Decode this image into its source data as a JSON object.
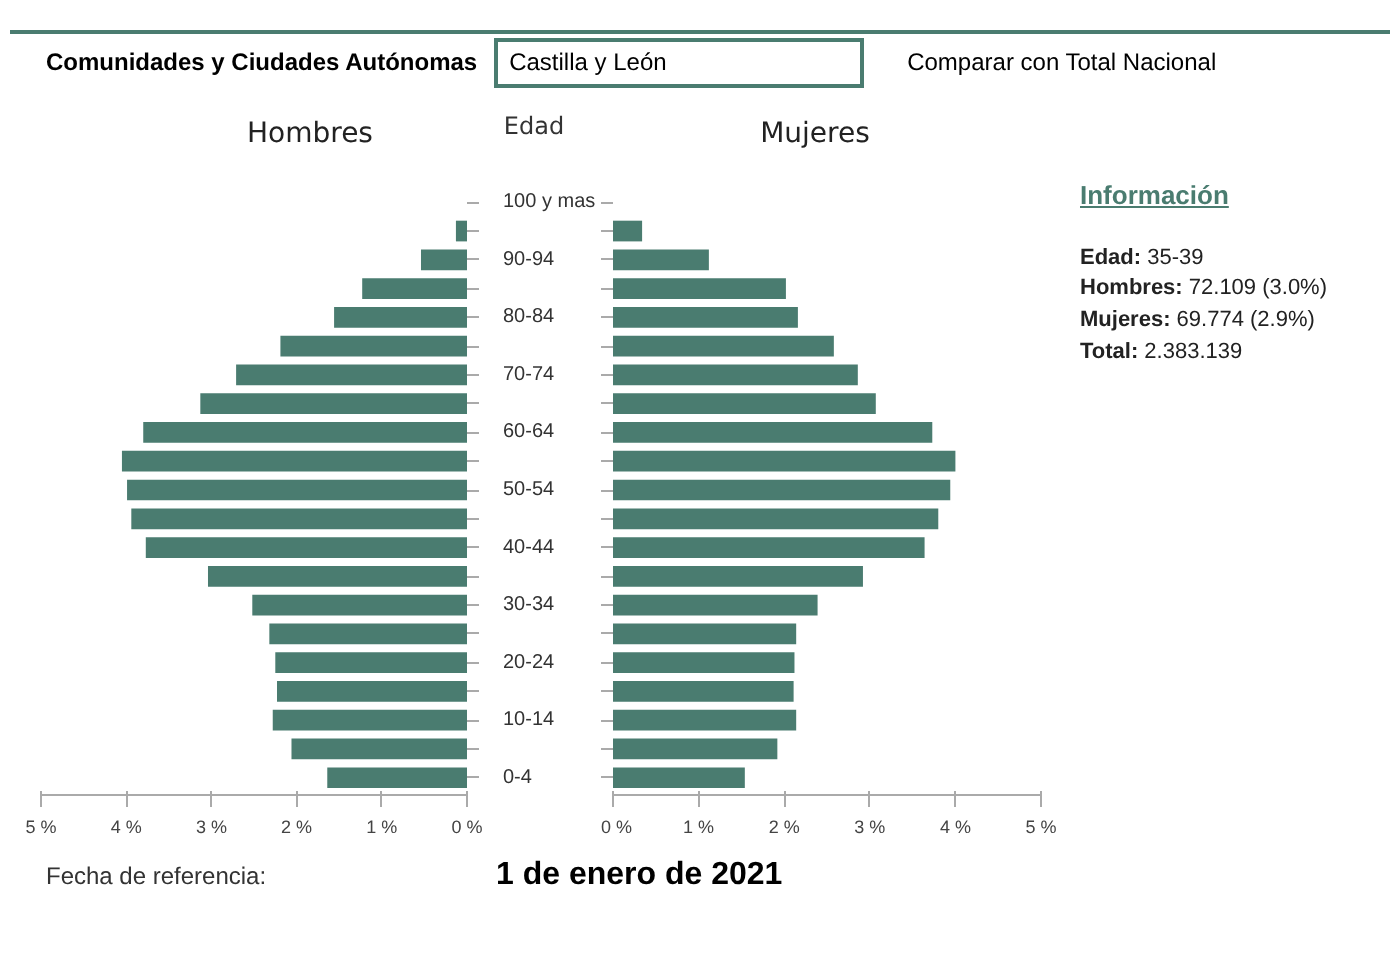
{
  "chart_data": [
    {
      "type": "bar",
      "orientation": "horizontal",
      "title": "Hombres",
      "ylabel": "Edad",
      "categories": [
        "100 y mas",
        null,
        "90-94",
        null,
        "80-84",
        null,
        "70-74",
        null,
        "60-64",
        null,
        "50-54",
        null,
        "40-44",
        null,
        "30-34",
        null,
        "20-24",
        null,
        "10-14",
        null,
        "0-4"
      ],
      "series": [
        {
          "color": "#4a7c70",
          "values": [
            0,
            0.13,
            0.54,
            1.23,
            1.56,
            2.19,
            2.71,
            3.13,
            3.8,
            4.05,
            3.99,
            3.94,
            3.77,
            3.04,
            2.52,
            2.32,
            2.25,
            2.23,
            2.28,
            2.06,
            1.64
          ]
        }
      ],
      "xlim": [
        5,
        0
      ],
      "xticks": [
        {
          "value": 5,
          "label": "5 %"
        },
        {
          "value": 4,
          "label": "4 %"
        },
        {
          "value": 3,
          "label": "3 %"
        },
        {
          "value": 2,
          "label": "2 %"
        },
        {
          "value": 1,
          "label": "1 %"
        },
        {
          "value": 0,
          "label": "0 %"
        }
      ],
      "grid": false,
      "annotations": [
        "Comunidades y Ciudades Autónomas",
        "Castilla y León",
        "Comparar con Total Nacional",
        "Fecha de referencia:",
        "1 de enero de 2021"
      ]
    },
    {
      "type": "bar",
      "orientation": "horizontal",
      "title": "Mujeres",
      "series": [
        {
          "color": "#4a7c70",
          "values": [
            0,
            0.34,
            1.12,
            2.02,
            2.16,
            2.58,
            2.86,
            3.07,
            3.73,
            4.0,
            3.94,
            3.8,
            3.64,
            2.92,
            2.39,
            2.14,
            2.12,
            2.11,
            2.14,
            1.92,
            1.54
          ]
        }
      ],
      "xlim": [
        0,
        5
      ],
      "xticks": [
        {
          "value": 0,
          "label": "0 %"
        },
        {
          "value": 1,
          "label": "1 %"
        },
        {
          "value": 2,
          "label": "2 %"
        },
        {
          "value": 3,
          "label": "3 %"
        },
        {
          "value": 4,
          "label": "4 %"
        },
        {
          "value": 5,
          "label": "5 %"
        }
      ],
      "grid": false,
      "tick_labels": "x"
    },
    {
      "type": "other",
      "title": "Información",
      "annotations": [
        "Edad: 35-39",
        "Hombres: 72.109 (3.0%)",
        "Mujeres: 69.774 (2.9%)",
        "Total: 2.383.139"
      ]
    }
  ]
}
